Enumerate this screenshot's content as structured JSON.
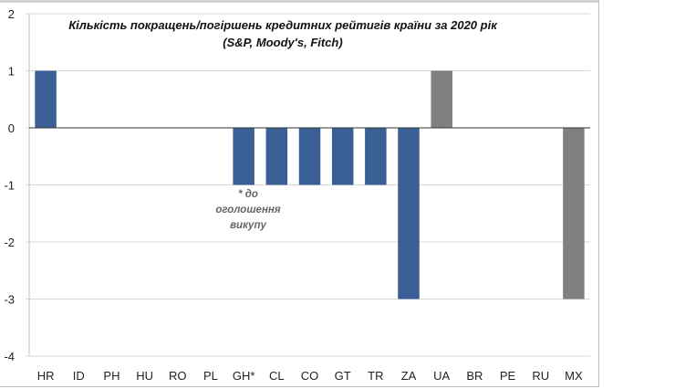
{
  "chart_data": {
    "type": "bar",
    "title": "Кількість покращень/погіршень кредитних рейтигів країни за 2020 рік",
    "subtitle": "(S&P, Moody's, Fitch)",
    "categories": [
      "HR",
      "ID",
      "PH",
      "HU",
      "RO",
      "PL",
      "GH*",
      "CL",
      "CO",
      "GT",
      "TR",
      "ZA",
      "UA",
      "BR",
      "PE",
      "RU",
      "MX"
    ],
    "values": [
      1,
      0,
      0,
      0,
      0,
      0,
      -1,
      -1,
      -1,
      -1,
      -1,
      -3,
      1,
      0,
      0,
      0,
      -3
    ],
    "bar_colors": [
      "#3a5f95",
      "#3a5f95",
      "#3a5f95",
      "#3a5f95",
      "#3a5f95",
      "#3a5f95",
      "#3a5f95",
      "#3a5f95",
      "#3a5f95",
      "#3a5f95",
      "#3a5f95",
      "#3a5f95",
      "#808080",
      "#808080",
      "#808080",
      "#808080",
      "#808080"
    ],
    "ylim": [
      -4,
      2
    ],
    "yticks": [
      "2",
      "1",
      "0",
      "-1",
      "-2",
      "-3",
      "-4"
    ],
    "grid": true,
    "annotation": {
      "line1": "* до",
      "line2": "оголошення",
      "line3": "викупу"
    },
    "xlabel": "",
    "ylabel": ""
  }
}
